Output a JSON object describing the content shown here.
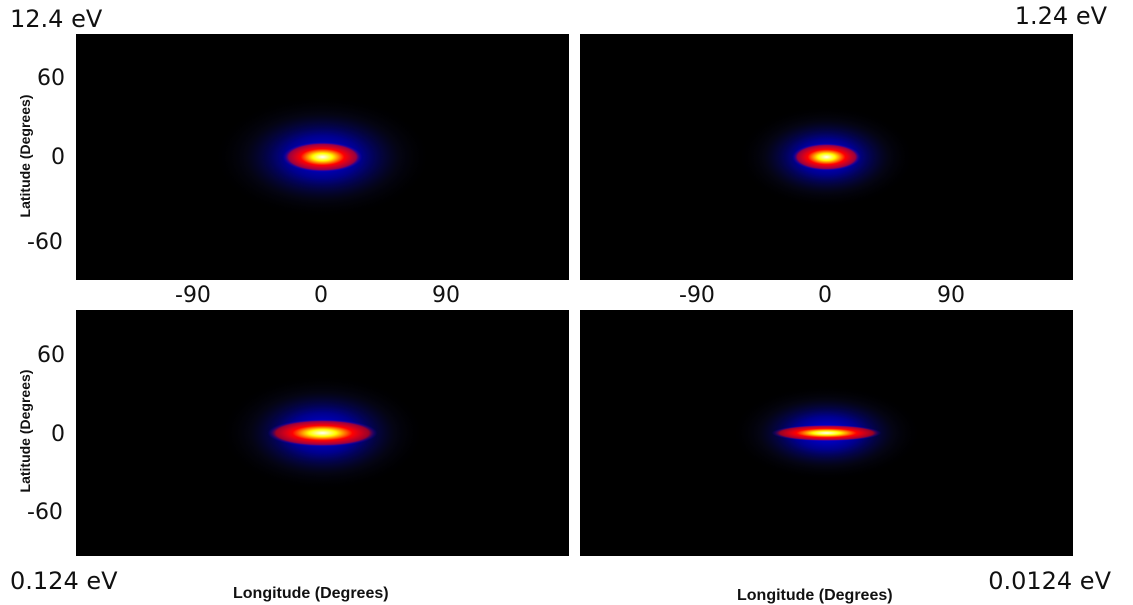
{
  "chart_data": [
    {
      "type": "heatmap",
      "energy_label": "12.4 eV",
      "ylabel": "Latitude (Degrees)",
      "xlabel": "",
      "yticks": [
        "60",
        "0",
        "-60"
      ],
      "xticks": [
        "-90",
        "0",
        "90"
      ],
      "xlim": [
        -180,
        180
      ],
      "ylim": [
        -90,
        90
      ],
      "peak": {
        "lon": 0,
        "lat": 0
      },
      "core_extent_deg": {
        "lon": 58,
        "lat": 22
      },
      "halo_extent_deg": {
        "lon": 160,
        "lat": 90
      },
      "colormap": [
        "#000000",
        "#0000ff",
        "#ff0000",
        "#ffff00",
        "#ffffff"
      ]
    },
    {
      "type": "heatmap",
      "energy_label": "1.24 eV",
      "ylabel": "",
      "xlabel": "",
      "yticks": [],
      "xticks": [
        "-90",
        "0",
        "90"
      ],
      "xlim": [
        -180,
        180
      ],
      "ylim": [
        -90,
        90
      ],
      "peak": {
        "lon": 0,
        "lat": 0
      },
      "core_extent_deg": {
        "lon": 50,
        "lat": 20
      },
      "halo_extent_deg": {
        "lon": 130,
        "lat": 75
      },
      "colormap": [
        "#000000",
        "#0000ff",
        "#ff0000",
        "#ffff00",
        "#ffffff"
      ]
    },
    {
      "type": "heatmap",
      "energy_label": "0.124 eV",
      "ylabel": "Latitude (Degrees)",
      "xlabel": "Longitude (Degrees)",
      "yticks": [
        "60",
        "0",
        "-60"
      ],
      "xticks": [],
      "xlim": [
        -180,
        180
      ],
      "ylim": [
        -90,
        90
      ],
      "peak": {
        "lon": 0,
        "lat": 0
      },
      "core_extent_deg": {
        "lon": 80,
        "lat": 20
      },
      "halo_extent_deg": {
        "lon": 150,
        "lat": 85
      },
      "colormap": [
        "#000000",
        "#0000ff",
        "#ff0000",
        "#ffff00",
        "#ffffff"
      ]
    },
    {
      "type": "heatmap",
      "energy_label": "0.0124 eV",
      "ylabel": "",
      "xlabel": "Longitude (Degrees)",
      "yticks": [],
      "xticks": [],
      "xlim": [
        -180,
        180
      ],
      "ylim": [
        -90,
        90
      ],
      "peak": {
        "lon": 0,
        "lat": 0
      },
      "core_extent_deg": {
        "lon": 80,
        "lat": 12
      },
      "halo_extent_deg": {
        "lon": 140,
        "lat": 70
      },
      "colormap": [
        "#000000",
        "#0000ff",
        "#ff0000",
        "#ffff00",
        "#ffffff"
      ]
    }
  ]
}
